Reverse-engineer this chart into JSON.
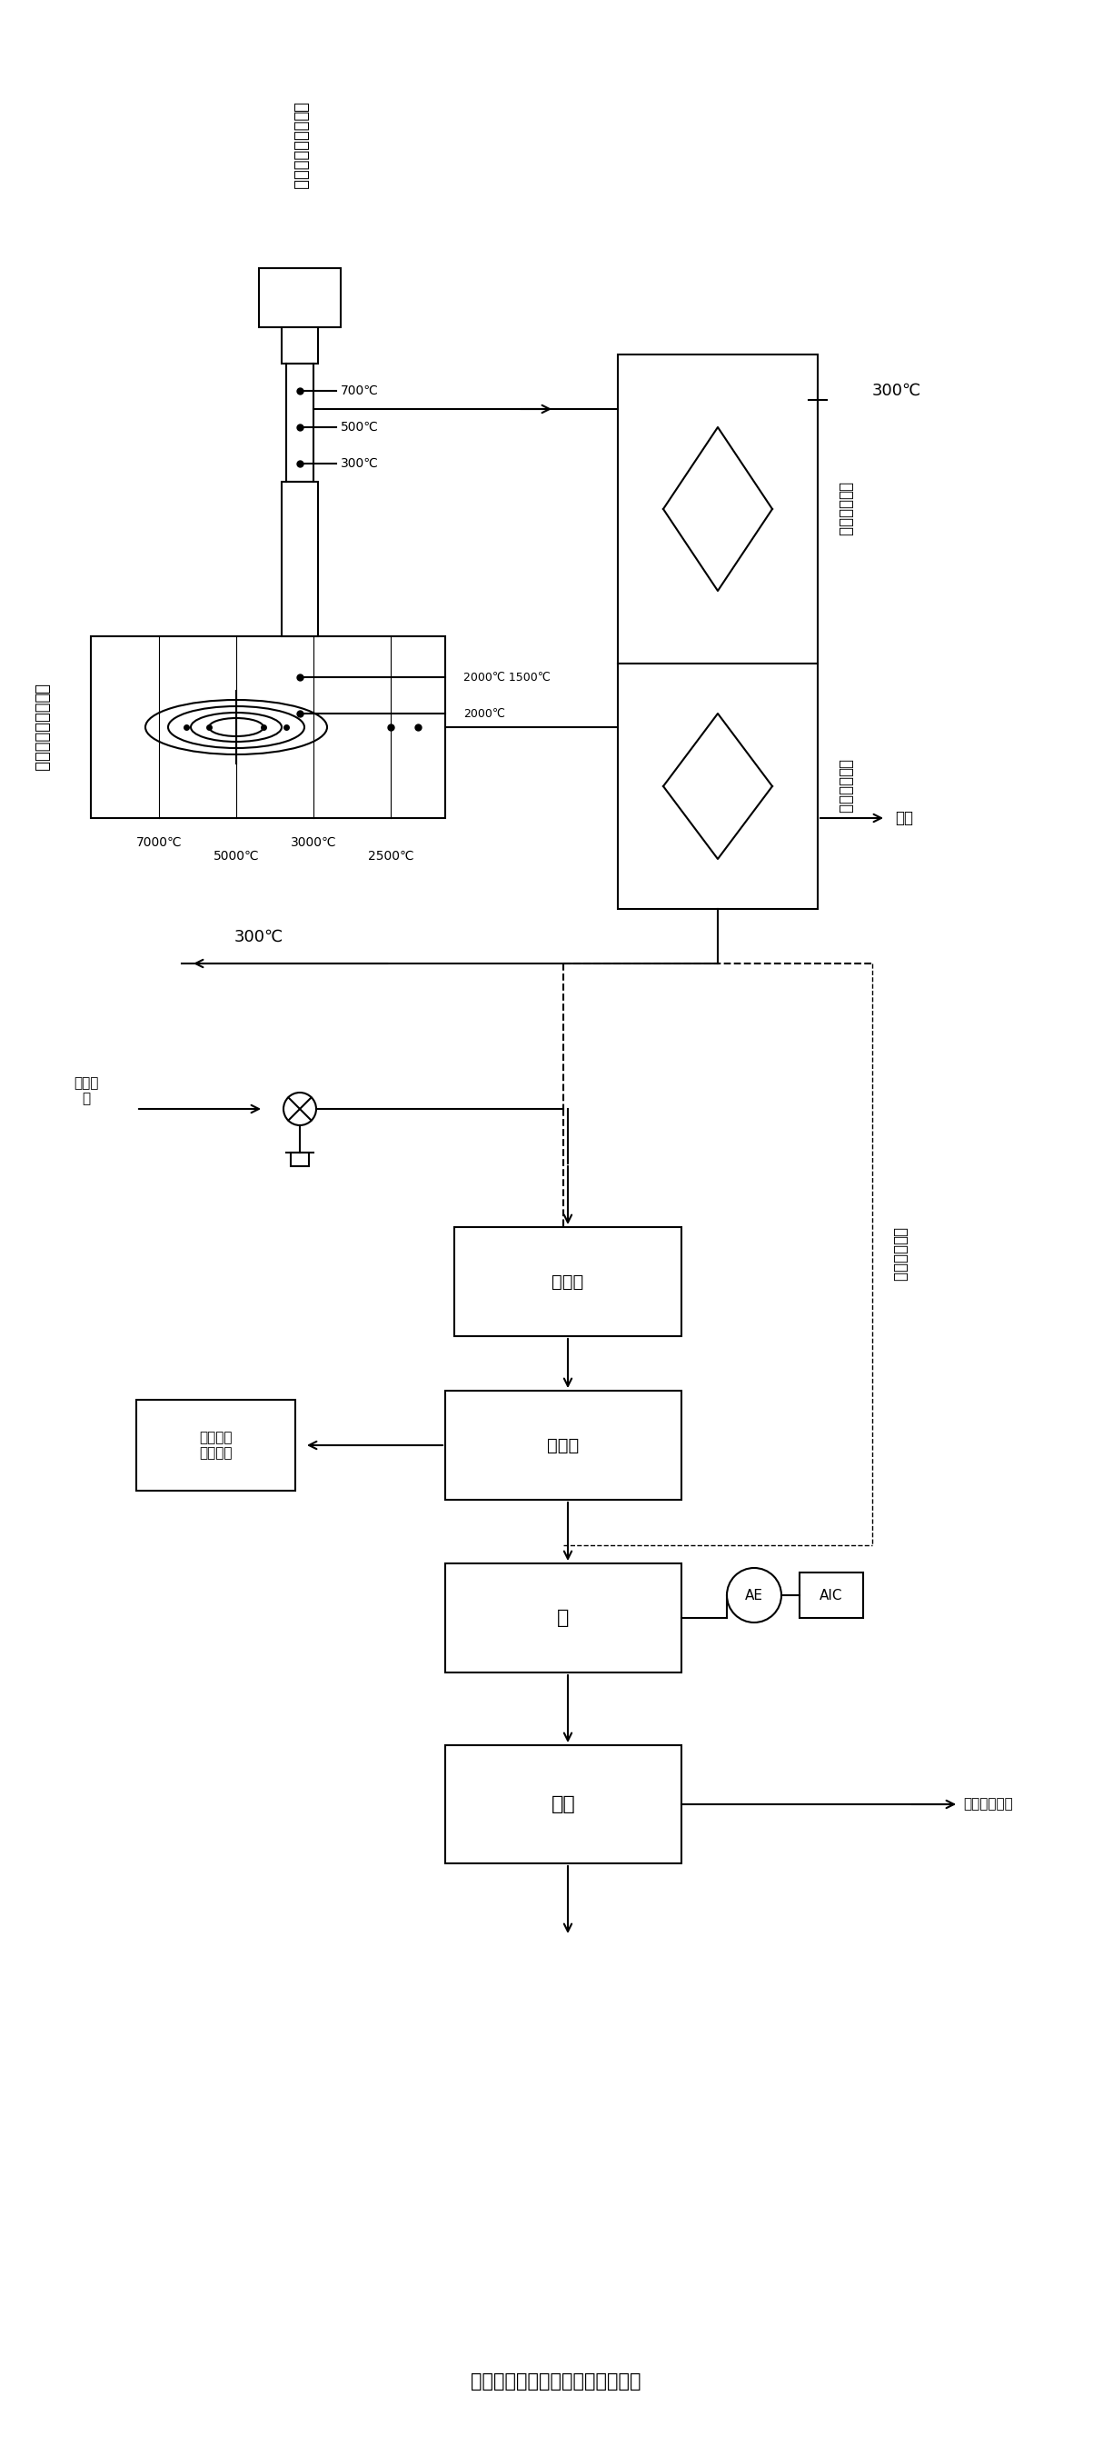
{
  "bg_color": "#ffffff",
  "lw": 1.5,
  "elements": {
    "title_top1": "一次燃烧室及裂解炉",
    "title_top2": "二次燃烧室及裂解炉",
    "heat_recover_label1": "熱能回收装置",
    "heat_recover_label2": "熱能回收装置",
    "cooler_label": "騿冷器",
    "absorber_label": "吸收器",
    "pump_label": "泵",
    "stamp_label": "图章",
    "neutral_waste_label": "中性废液\n（排放）",
    "flue_label": "烟气",
    "steam_label": "水蒸气\n入",
    "report_label": "废液分析报告",
    "temp_300_1": "300℃",
    "temp_300_2": "300℃",
    "temp_700_1": "7000℃",
    "temp_500_1": "5000℃",
    "temp_300_r1": "3000℃",
    "temp_250_r1": "2500℃",
    "temp_700_2": "700℃",
    "temp_500_2": "500℃",
    "temp_300_2t": "300℃",
    "temp_2000_1500": "2000℃ 1500℃",
    "temp_2000": "2000℃"
  }
}
